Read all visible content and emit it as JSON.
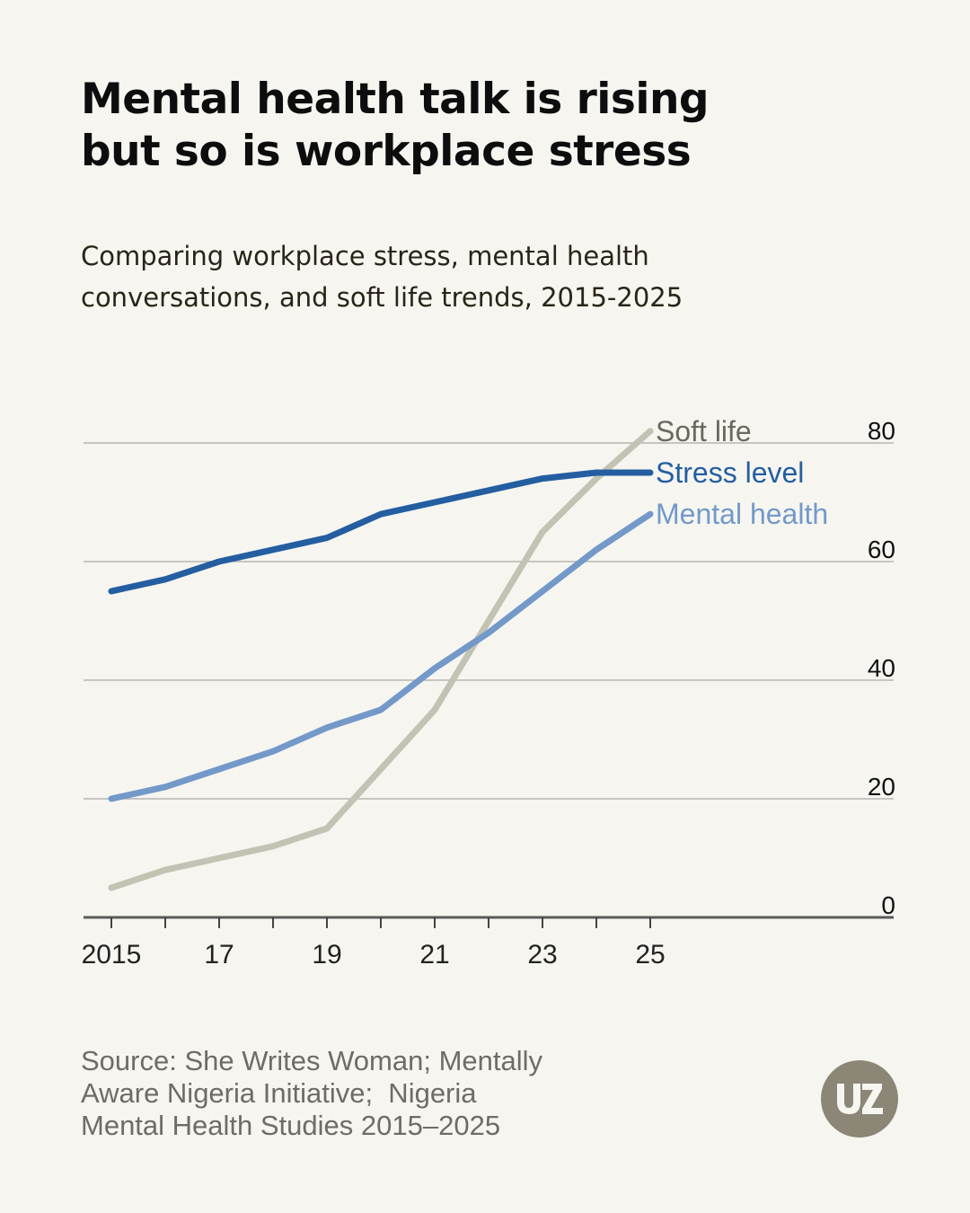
{
  "title": {
    "line1": "Mental health talk is rising",
    "line2": "but so is workplace stress"
  },
  "subtitle": {
    "line1": "Comparing workplace stress, mental health",
    "line2": "conversations, and soft life trends, 2015-2025"
  },
  "source": {
    "line1": "Source: She Writes Woman; Mentally",
    "line2": "Aware Nigeria Initiative;  Nigeria",
    "line3": "Mental Health Studies 2015–2025"
  },
  "logo": {
    "icon": "uz-logo-icon"
  },
  "chart_data": {
    "type": "line",
    "title": "Mental health talk is rising but so is workplace stress",
    "subtitle": "Comparing workplace stress, mental health conversations, and soft life trends, 2015-2025",
    "x": [
      2015,
      2016,
      2017,
      2018,
      2019,
      2020,
      2021,
      2022,
      2023,
      2024,
      2025
    ],
    "x_tick_values": [
      2015,
      2017,
      2019,
      2021,
      2023,
      2025
    ],
    "x_tick_labels": [
      "2015",
      "17",
      "19",
      "21",
      "23",
      "25"
    ],
    "y_ticks": [
      0,
      20,
      40,
      60,
      80
    ],
    "ylim": [
      0,
      80
    ],
    "grid": true,
    "y_axis_side": "right",
    "legend_placement": "direct labels at line ends",
    "series": [
      {
        "name": "Soft life",
        "color": "#c2c3b3",
        "label_color": "#6b685f",
        "values": [
          5,
          8,
          10,
          12,
          15,
          25,
          35,
          50,
          65,
          74,
          82
        ]
      },
      {
        "name": "Stress level",
        "color": "#245ea1",
        "label_color": "#245ea1",
        "values": [
          55,
          57,
          60,
          62,
          64,
          68,
          70,
          72,
          74,
          75,
          75
        ]
      },
      {
        "name": "Mental health",
        "color": "#7399c9",
        "label_color": "#7399c9",
        "values": [
          20,
          22,
          25,
          28,
          32,
          35,
          42,
          48,
          55,
          62,
          68
        ]
      }
    ]
  }
}
